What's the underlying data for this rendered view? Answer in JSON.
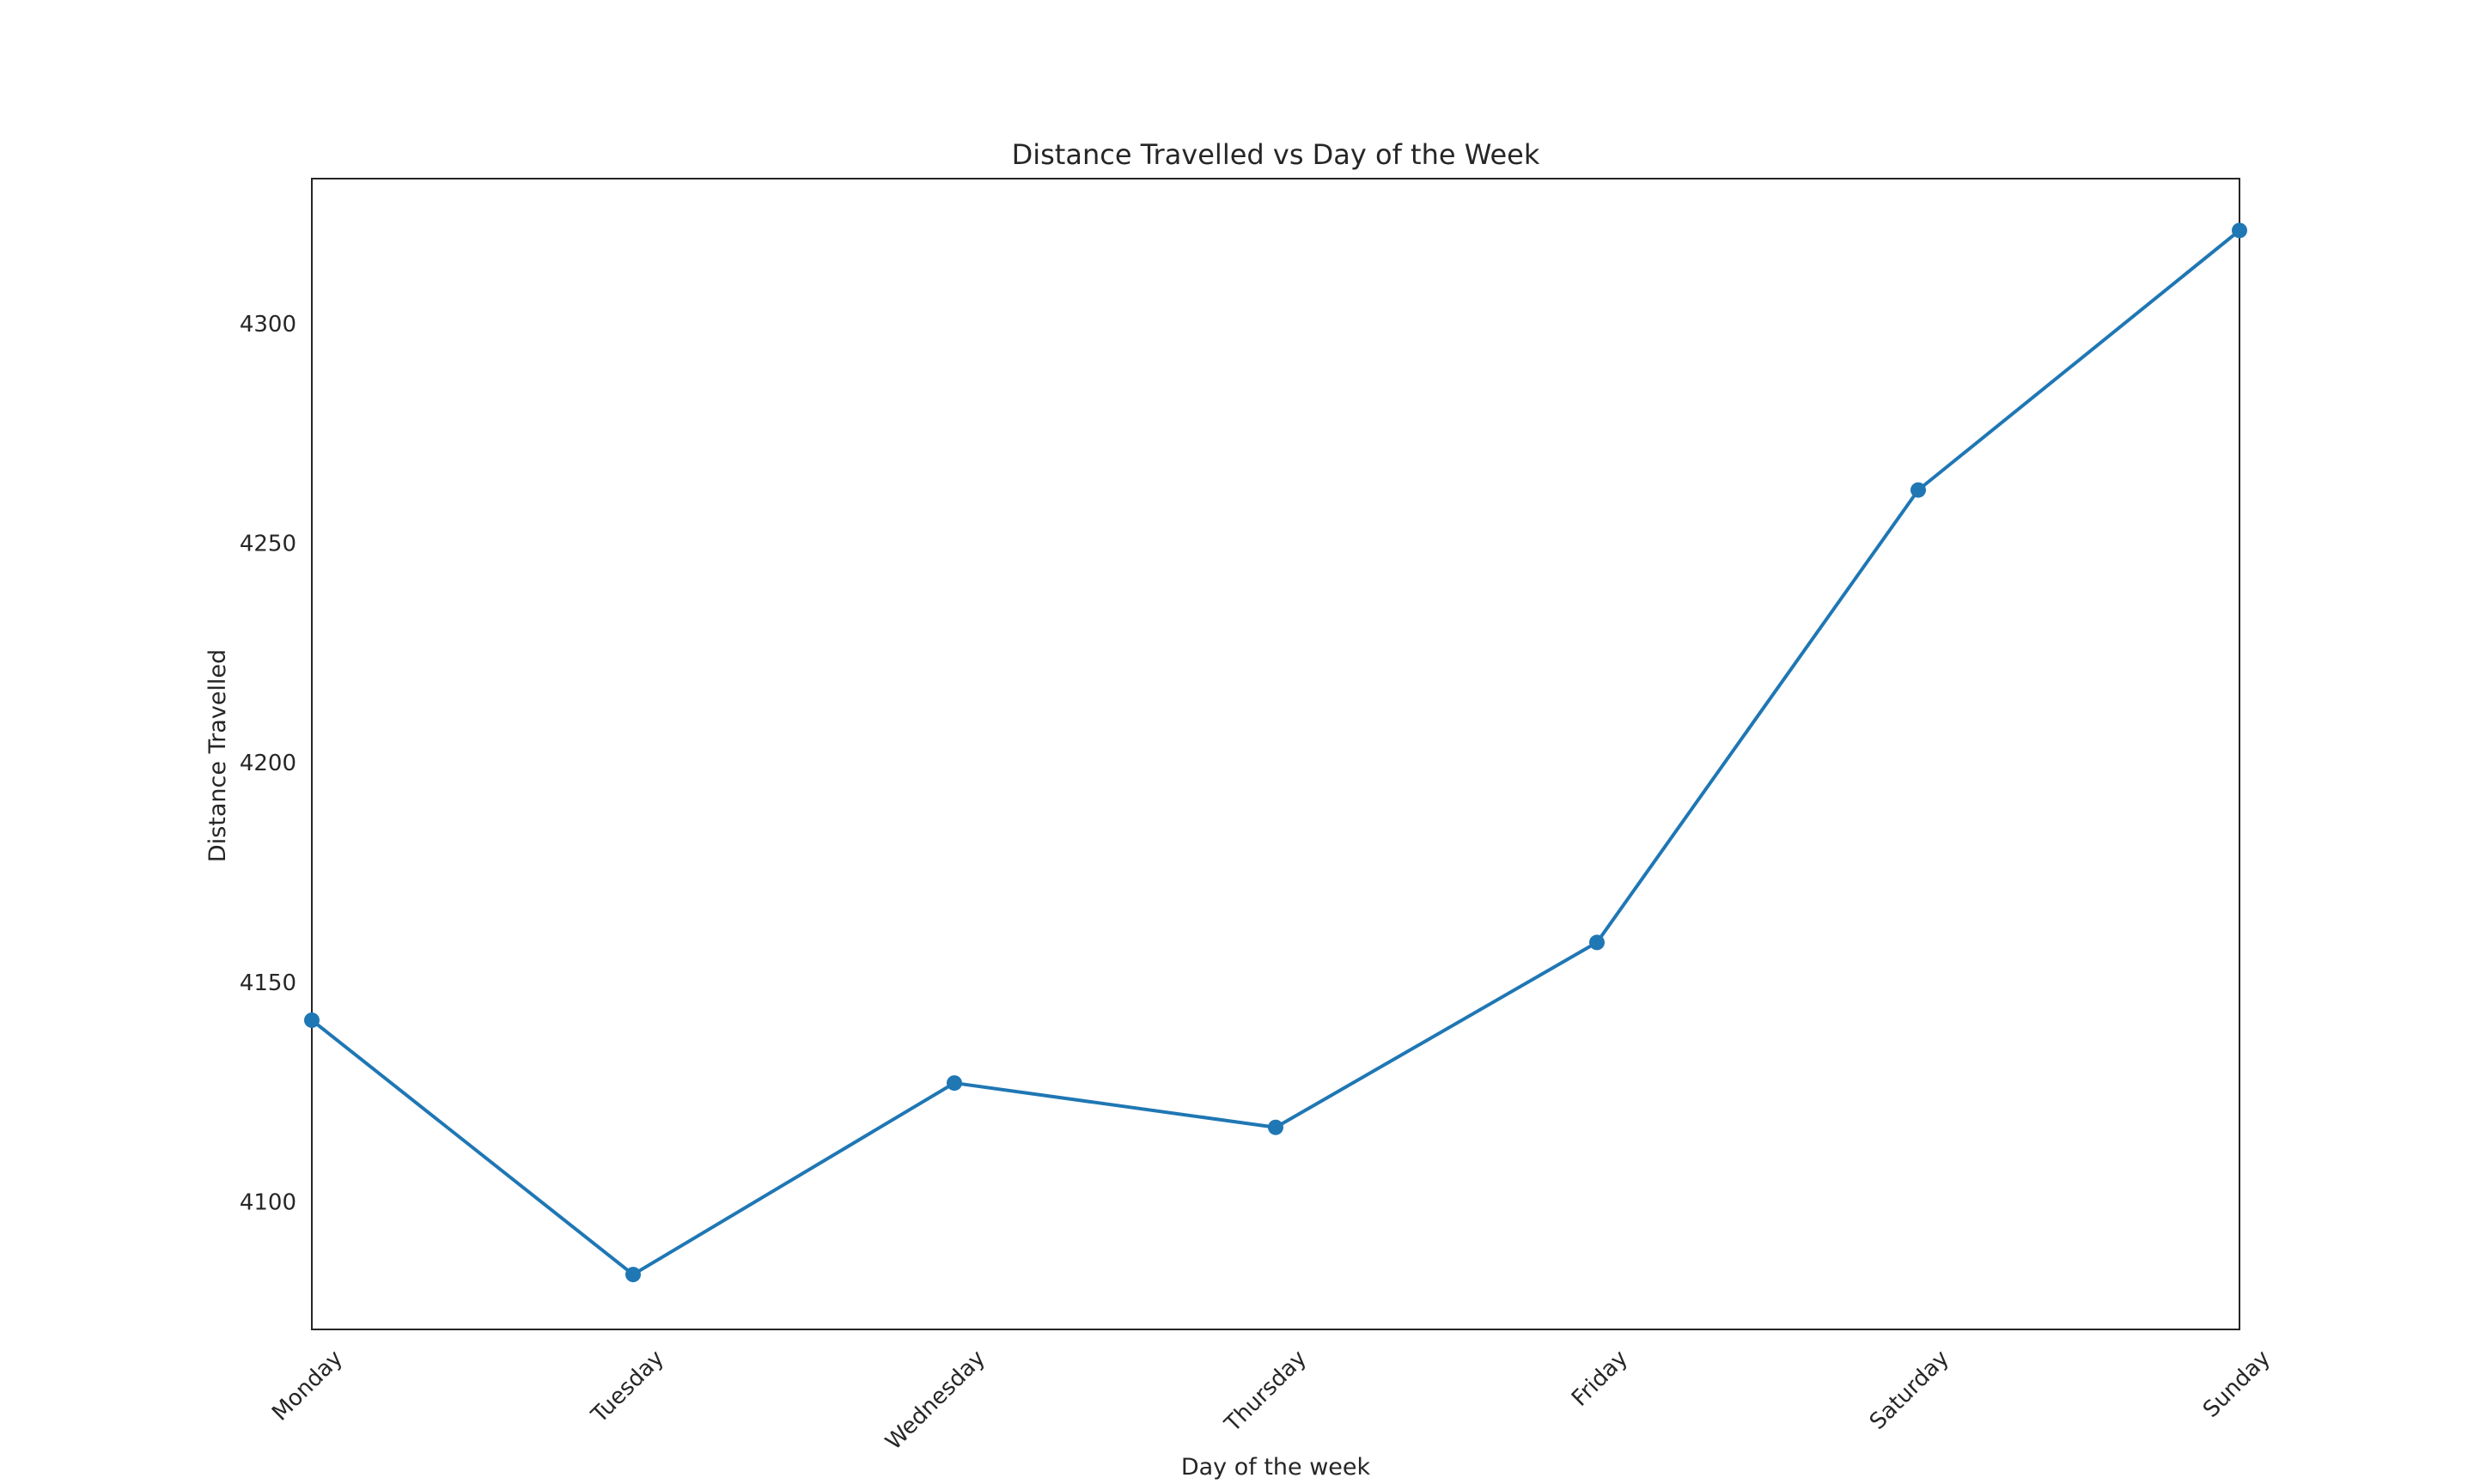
{
  "chart_data": {
    "type": "line",
    "title": "Distance Travelled vs Day of the Week",
    "xlabel": "Day of the week",
    "ylabel": "Distance Travelled",
    "categories": [
      "Monday",
      "Tuesday",
      "Wednesday",
      "Thursday",
      "Friday",
      "Saturday",
      "Sunday"
    ],
    "values": [
      4141.4,
      4083.5,
      4127.1,
      4117,
      4159.1,
      4262.1,
      4321.2
    ],
    "ylim": [
      4071,
      4333
    ],
    "yticks": [
      4100,
      4150,
      4200,
      4250,
      4300
    ],
    "grid": false,
    "legend": "none",
    "line_color": "#1f77b4",
    "axis_color": "#262626"
  }
}
